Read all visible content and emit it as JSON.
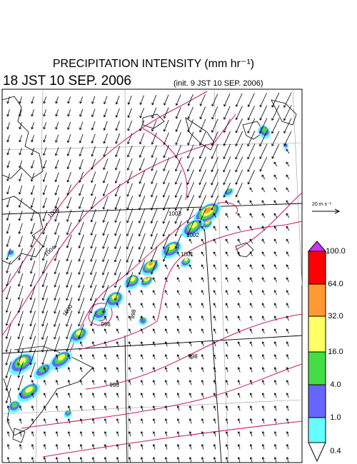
{
  "header": {
    "title": "PRECIPITATION INTENSITY (mm hr⁻¹)",
    "valid_time": "18 JST 10 SEP. 2006",
    "init_time": "(init. 9 JST 10 SEP. 2006)"
  },
  "wind_scale": {
    "label": "20 m s⁻¹"
  },
  "colorbar": {
    "labels": [
      "100.0",
      "64.0",
      "32.0",
      "16.0",
      "4.0",
      "1.0",
      "0.4"
    ],
    "colors": [
      "#cc33ff",
      "#ff0000",
      "#ff9933",
      "#ffff66",
      "#44dd44",
      "#6666ff",
      "#66ffff",
      "#ffffff"
    ]
  },
  "map": {
    "contour_labels": [
      "1008",
      "1004",
      "1000",
      "996",
      "1003",
      "1002",
      "1001",
      "998",
      "996",
      "998"
    ]
  }
}
